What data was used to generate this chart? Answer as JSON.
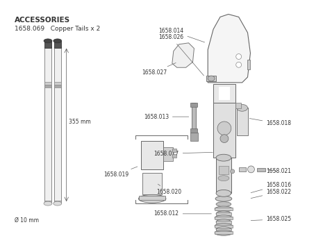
{
  "bg_color": "#ffffff",
  "text_color": "#333333",
  "accessories_header": "ACCESSORIES",
  "accessories_line": "1658.069   Copper Tails x 2",
  "dimension_355": "355 mm",
  "dimension_10": "Ø 10 mm",
  "label_fontsize": 5.5,
  "header_fontsize": 7.5,
  "sub_fontsize": 6.5
}
